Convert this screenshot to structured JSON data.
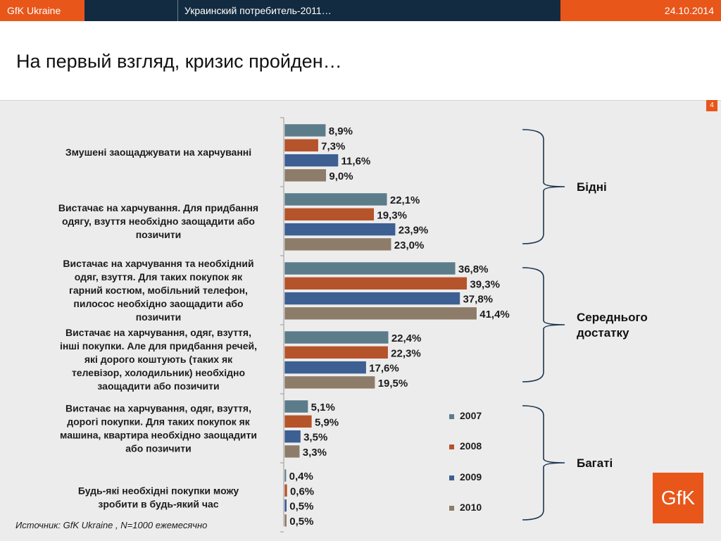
{
  "header": {
    "brand": "GfK Ukraine",
    "presentation_title": "Украинский потребитель-2011…",
    "date": "24.10.2014"
  },
  "page_title": "На первый взгляд, кризис пройден…",
  "page_number": "4",
  "source": "Источник:  GfK Ukraine , N=1000 ежемесячно",
  "logo_text": "GfK",
  "colors": {
    "brand_orange": "#e8561a",
    "header_navy": "#132b40",
    "series_2007": "#5c7c8a",
    "series_2008": "#b5532b",
    "series_2009": "#3d5f92",
    "series_2010": "#8e7c6a"
  },
  "chart_data": {
    "type": "bar",
    "orientation": "horizontal",
    "categories": [
      [
        "Змушені заощаджувати на харчуванні"
      ],
      [
        "Вистачає на харчування. Для придбання",
        "одягу, взуття необхідно заощадити або",
        "позичити"
      ],
      [
        "Вистачає на харчування та необхідний",
        "одяг, взуття. Для таких покупок як",
        "гарний костюм, мобільний телефон,",
        "пилосос необхідно заощадити або",
        "позичити"
      ],
      [
        "Вистачає на харчування, одяг, взуття,",
        "інші покупки. Але для придбання речей,",
        "які дорого коштують (таких як",
        "телевізор, холодильник) необхідно",
        "заощадити або позичити"
      ],
      [
        "Вистачає на харчування, одяг, взуття,",
        "дорогі покупки. Для таких покупок як",
        "машина, квартира необхідно заощадити",
        "або позичити"
      ],
      [
        "Будь-які необхідні покупки можу",
        "зробити в будь-який час"
      ]
    ],
    "series": [
      {
        "name": "2007",
        "color": "#5c7c8a",
        "values": [
          8.9,
          22.1,
          36.8,
          22.4,
          5.1,
          0.4
        ],
        "labels": [
          "8,9%",
          "22,1%",
          "36,8%",
          "22,4%",
          "5,1%",
          "0,4%"
        ]
      },
      {
        "name": "2008",
        "color": "#b5532b",
        "values": [
          7.3,
          19.3,
          39.3,
          22.3,
          5.9,
          0.6
        ],
        "labels": [
          "7,3%",
          "19,3%",
          "39,3%",
          "22,3%",
          "5,9%",
          "0,6%"
        ]
      },
      {
        "name": "2009",
        "color": "#3d5f92",
        "values": [
          11.6,
          23.9,
          37.8,
          17.6,
          3.5,
          0.5
        ],
        "labels": [
          "11,6%",
          "23,9%",
          "37,8%",
          "17,6%",
          "3,5%",
          "0,5%"
        ]
      },
      {
        "name": "2010",
        "color": "#8e7c6a",
        "values": [
          9.0,
          23.0,
          41.4,
          19.5,
          3.3,
          0.5
        ],
        "labels": [
          "9,0%",
          "23,0%",
          "41,4%",
          "19,5%",
          "3,3%",
          "0,5%"
        ]
      }
    ],
    "xlim": [
      0,
      45
    ],
    "legend": "bottom-right, inside plot",
    "groups": [
      {
        "label": [
          "Бідні"
        ],
        "categories": [
          0,
          1
        ]
      },
      {
        "label": [
          "Середнього",
          "достатку"
        ],
        "categories": [
          2,
          3
        ]
      },
      {
        "label": [
          "Багаті"
        ],
        "categories": [
          4,
          5
        ]
      }
    ]
  }
}
